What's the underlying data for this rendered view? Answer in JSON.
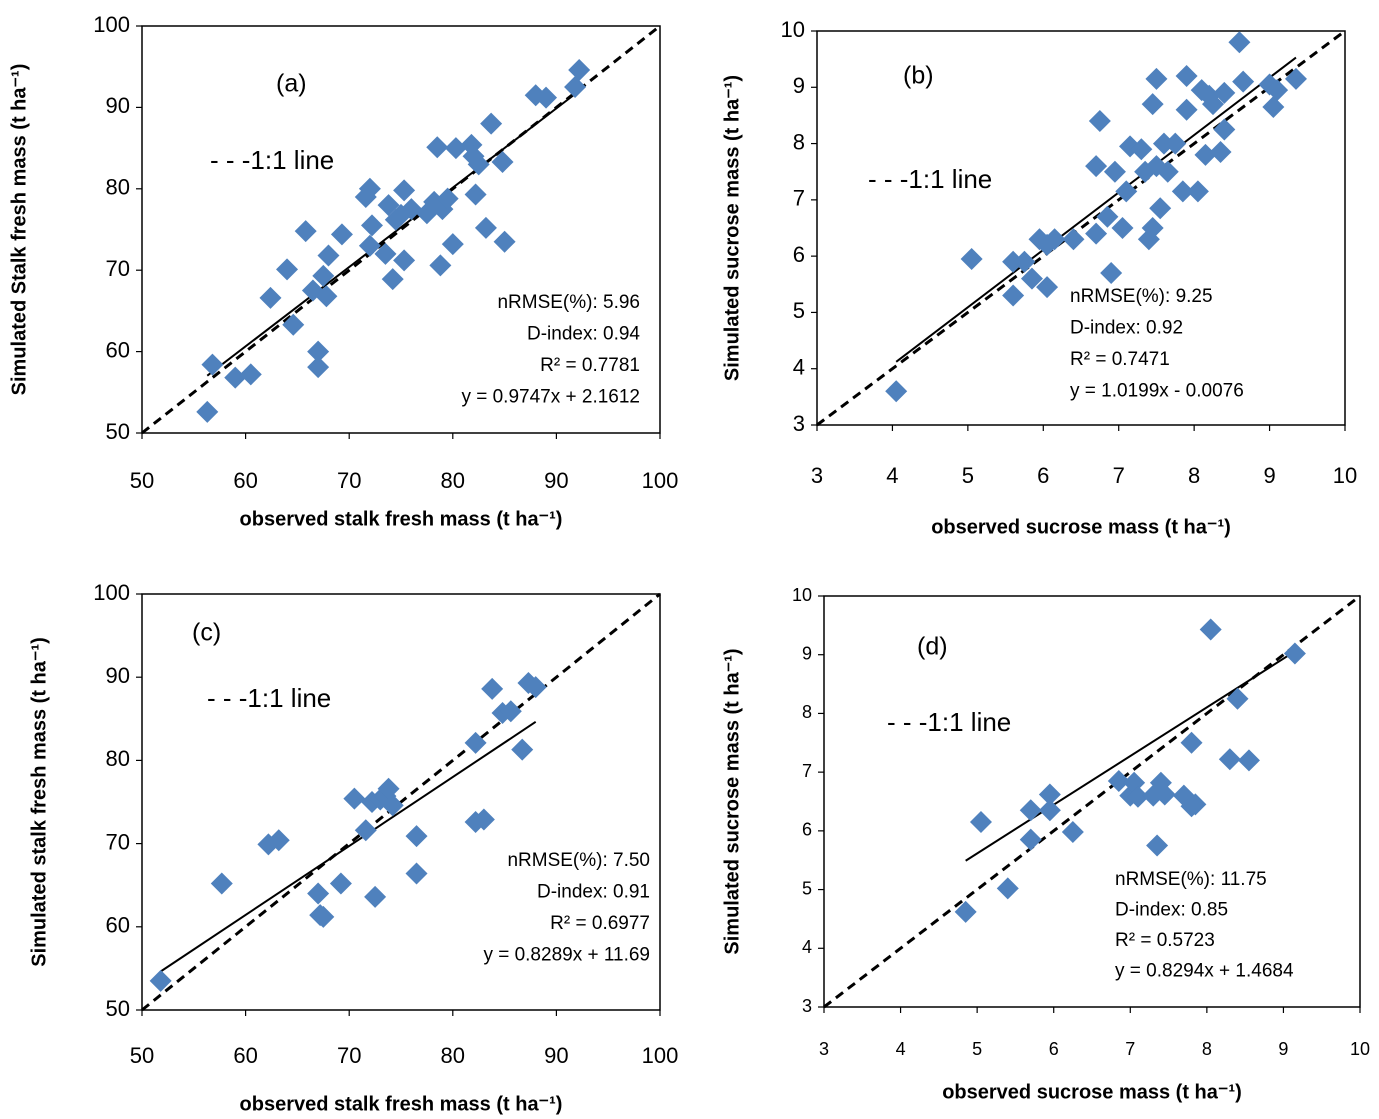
{
  "chart_data": [
    {
      "type": "scatter",
      "panel_label": "(a)",
      "xlabel": "observed stalk fresh mass (t ha⁻¹)",
      "ylabel": "Simulated Stalk fresh mass (t ha⁻¹)",
      "xlim": [
        50,
        100
      ],
      "ylim": [
        50,
        100
      ],
      "xticks": [
        50,
        60,
        70,
        80,
        90,
        100
      ],
      "yticks": [
        50,
        60,
        70,
        80,
        90,
        100
      ],
      "color": "#4f81bd",
      "x": [
        56.3,
        56.8,
        59,
        60.5,
        62.4,
        64,
        64.6,
        65.8,
        66.5,
        67,
        67,
        67.5,
        67.8,
        68,
        69.3,
        71.6,
        72,
        72,
        72.2,
        73.5,
        73.8,
        74.2,
        74.5,
        75,
        75.3,
        75.3,
        76,
        77.5,
        78.2,
        78.5,
        78.8,
        79,
        79.5,
        80,
        80.3,
        81.8,
        82,
        82.2,
        82.5,
        83.2,
        83.7,
        84.8,
        85,
        88,
        89,
        91.8,
        92.2
      ],
      "values": [
        52.6,
        58.4,
        56.8,
        57.2,
        66.6,
        70.1,
        63.3,
        74.8,
        67.5,
        60,
        58.1,
        69.3,
        66.8,
        71.8,
        74.4,
        79,
        80,
        73,
        75.5,
        72,
        78,
        68.9,
        76.2,
        76.8,
        71.2,
        79.8,
        77.5,
        77,
        78.4,
        85.1,
        70.6,
        77.5,
        78.8,
        73.2,
        85,
        85.4,
        84,
        79.3,
        83,
        75.2,
        88,
        83.3,
        73.5,
        91.5,
        91.2,
        92.5,
        94.6
      ],
      "one_to_one_label": "- - -1:1 line",
      "stats": [
        "nRMSE(%): 5.96",
        "D-index: 0.94",
        "R² = 0.7781"
      ],
      "fit": {
        "label": "y = 0.9747x + 2.1612",
        "slope": 0.9747,
        "intercept": 2.1612
      }
    },
    {
      "type": "scatter",
      "panel_label": "(b)",
      "xlabel": "observed sucrose mass (t ha⁻¹)",
      "ylabel": "Simulated sucrose mass (t ha⁻¹)",
      "xlim": [
        3,
        10
      ],
      "ylim": [
        3,
        10
      ],
      "xticks": [
        3,
        4,
        5,
        6,
        7,
        8,
        9,
        10
      ],
      "yticks": [
        3,
        4,
        5,
        6,
        7,
        8,
        9,
        10
      ],
      "color": "#4f81bd",
      "x": [
        4.05,
        5.05,
        5.6,
        5.6,
        5.75,
        5.85,
        5.95,
        6.05,
        6.05,
        6.15,
        6.4,
        6.7,
        6.7,
        6.75,
        6.85,
        6.9,
        6.95,
        7.05,
        7.1,
        7.15,
        7.3,
        7.35,
        7.4,
        7.45,
        7.45,
        7.5,
        7.5,
        7.55,
        7.6,
        7.65,
        7.75,
        7.85,
        7.9,
        7.9,
        8.05,
        8.1,
        8.15,
        8.2,
        8.25,
        8.35,
        8.4,
        8.4,
        8.6,
        8.65,
        9,
        9.05,
        9.1,
        9.35
      ],
      "values": [
        3.6,
        5.95,
        5.3,
        5.9,
        5.9,
        5.6,
        6.3,
        5.45,
        6.2,
        6.3,
        6.3,
        6.4,
        7.6,
        8.4,
        6.7,
        5.7,
        7.5,
        6.5,
        7.15,
        7.95,
        7.9,
        7.5,
        6.3,
        6.5,
        8.7,
        7.6,
        9.15,
        6.85,
        8,
        7.5,
        8,
        7.15,
        8.6,
        9.2,
        7.15,
        8.95,
        7.8,
        8.85,
        8.7,
        7.85,
        8.25,
        8.9,
        9.8,
        9.1,
        9.05,
        8.65,
        8.95,
        9.15
      ],
      "one_to_one_label": "- - -1:1 line",
      "stats": [
        "nRMSE(%): 9.25",
        "D-index: 0.92",
        "R² = 0.7471"
      ],
      "fit": {
        "label": "y = 1.0199x - 0.0076",
        "slope": 1.0199,
        "intercept": -0.0076
      }
    },
    {
      "type": "scatter",
      "panel_label": "(c)",
      "xlabel": "observed stalk fresh mass (t ha⁻¹)",
      "ylabel": "Simulated stalk fresh mass (t ha⁻¹)",
      "xlim": [
        50,
        100
      ],
      "ylim": [
        50,
        100
      ],
      "xticks": [
        50,
        60,
        70,
        80,
        90,
        100
      ],
      "yticks": [
        50,
        60,
        70,
        80,
        90,
        100
      ],
      "color": "#4f81bd",
      "x": [
        51.8,
        57.7,
        62.2,
        63.2,
        67,
        67.2,
        67.5,
        69.2,
        70.5,
        71.6,
        72.2,
        72.5,
        73,
        73.5,
        73.8,
        74.2,
        76.5,
        76.5,
        82.2,
        82.2,
        83,
        83.8,
        84.8,
        85.6,
        86.7,
        87.3,
        88
      ],
      "values": [
        53.5,
        65.2,
        69.9,
        70.4,
        64,
        61.4,
        61.2,
        65.2,
        75.4,
        71.6,
        75,
        63.6,
        75.3,
        75.7,
        76.6,
        74.6,
        70.9,
        66.4,
        82.1,
        72.6,
        72.9,
        88.6,
        85.7,
        85.9,
        81.3,
        89.3,
        88.8
      ],
      "one_to_one_label": "- - -1:1 line",
      "stats": [
        "nRMSE(%): 7.50",
        "D-index: 0.91",
        "R² = 0.6977"
      ],
      "fit": {
        "label": "y = 0.8289x + 11.69",
        "slope": 0.8289,
        "intercept": 11.69
      }
    },
    {
      "type": "scatter",
      "panel_label": "(d)",
      "xlabel": "observed sucrose mass (t ha⁻¹)",
      "ylabel": "Simulated sucrose mass (t ha⁻¹)",
      "xlim": [
        3,
        10
      ],
      "ylim": [
        3,
        10
      ],
      "xticks": [
        3,
        4,
        5,
        6,
        7,
        8,
        9,
        10
      ],
      "yticks": [
        3,
        4,
        5,
        6,
        7,
        8,
        9,
        10
      ],
      "color": "#4f81bd",
      "x": [
        4.85,
        5.05,
        5.4,
        5.7,
        5.7,
        5.95,
        5.95,
        6.25,
        6.85,
        7,
        7.05,
        7.1,
        7.3,
        7.35,
        7.4,
        7.45,
        7.7,
        7.8,
        7.8,
        7.85,
        8.05,
        8.3,
        8.4,
        8.55,
        9.15
      ],
      "values": [
        4.62,
        6.15,
        5.02,
        6.35,
        5.85,
        6.35,
        6.62,
        5.98,
        6.85,
        6.6,
        6.82,
        6.58,
        6.6,
        5.75,
        6.82,
        6.62,
        6.6,
        6.42,
        7.5,
        6.45,
        9.43,
        7.22,
        8.25,
        7.2,
        9.02
      ],
      "one_to_one_label": "- - -1:1 line",
      "stats": [
        "nRMSE(%): 11.75",
        "D-index: 0.85",
        "R² = 0.5723"
      ],
      "fit": {
        "label": "y = 0.8294x + 1.4684",
        "slope": 0.8294,
        "intercept": 1.4684
      }
    }
  ]
}
